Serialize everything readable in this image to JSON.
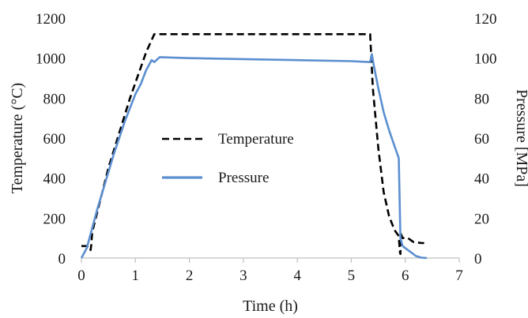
{
  "chart_data": {
    "type": "line",
    "title": "",
    "xlabel": "Time (h)",
    "ylabel_left": "Temperature (°C)",
    "ylabel_right": "Pressure [MPa]",
    "xlim": [
      0,
      7
    ],
    "ylim_left": [
      0,
      1200
    ],
    "ylim_right": [
      0,
      120
    ],
    "x_ticks": [
      "0",
      "1",
      "2",
      "3",
      "4",
      "5",
      "6",
      "7"
    ],
    "y_left_ticks": [
      "0",
      "200",
      "400",
      "600",
      "800",
      "1000",
      "1200"
    ],
    "y_right_ticks": [
      "0",
      "20",
      "40",
      "60",
      "80",
      "100",
      "120"
    ],
    "grid": false,
    "legend_placement": "center-left",
    "series": [
      {
        "name": "Temperature",
        "axis": "left",
        "color": "#000000",
        "style": "dashed",
        "x": [
          0,
          0.15,
          0.17,
          0.18,
          0.2,
          0.5,
          0.9,
          1.2,
          1.35,
          1.45,
          2.0,
          3.0,
          4.0,
          5.0,
          5.35,
          5.4,
          5.5,
          5.6,
          5.7,
          5.8,
          5.88,
          5.9,
          5.91,
          5.92,
          5.95,
          6.05,
          6.15,
          6.3,
          6.35
        ],
        "y": [
          60,
          60,
          40,
          60,
          130,
          450,
          800,
          1030,
          1120,
          1120,
          1120,
          1120,
          1120,
          1120,
          1120,
          850,
          550,
          330,
          210,
          140,
          110,
          30,
          20,
          120,
          100,
          100,
          80,
          75,
          75
        ]
      },
      {
        "name": "Pressure",
        "axis": "right",
        "color": "#5b8fd0",
        "style": "solid",
        "x": [
          0,
          0.1,
          0.3,
          0.6,
          0.8,
          1.0,
          1.1,
          1.2,
          1.3,
          1.35,
          1.45,
          2.0,
          3.0,
          4.0,
          5.0,
          5.35,
          5.38,
          5.42,
          5.5,
          5.6,
          5.7,
          5.8,
          5.88,
          5.91,
          5.95,
          6.0,
          6.1,
          6.2,
          6.3,
          6.4
        ],
        "y": [
          0,
          5,
          25,
          52,
          68,
          82,
          87,
          94,
          99,
          98,
          100.5,
          100,
          99.5,
          99,
          98.5,
          98,
          102,
          96,
          85,
          73,
          64,
          56,
          50,
          10,
          6,
          5,
          3,
          1,
          0.2,
          0
        ]
      }
    ]
  }
}
